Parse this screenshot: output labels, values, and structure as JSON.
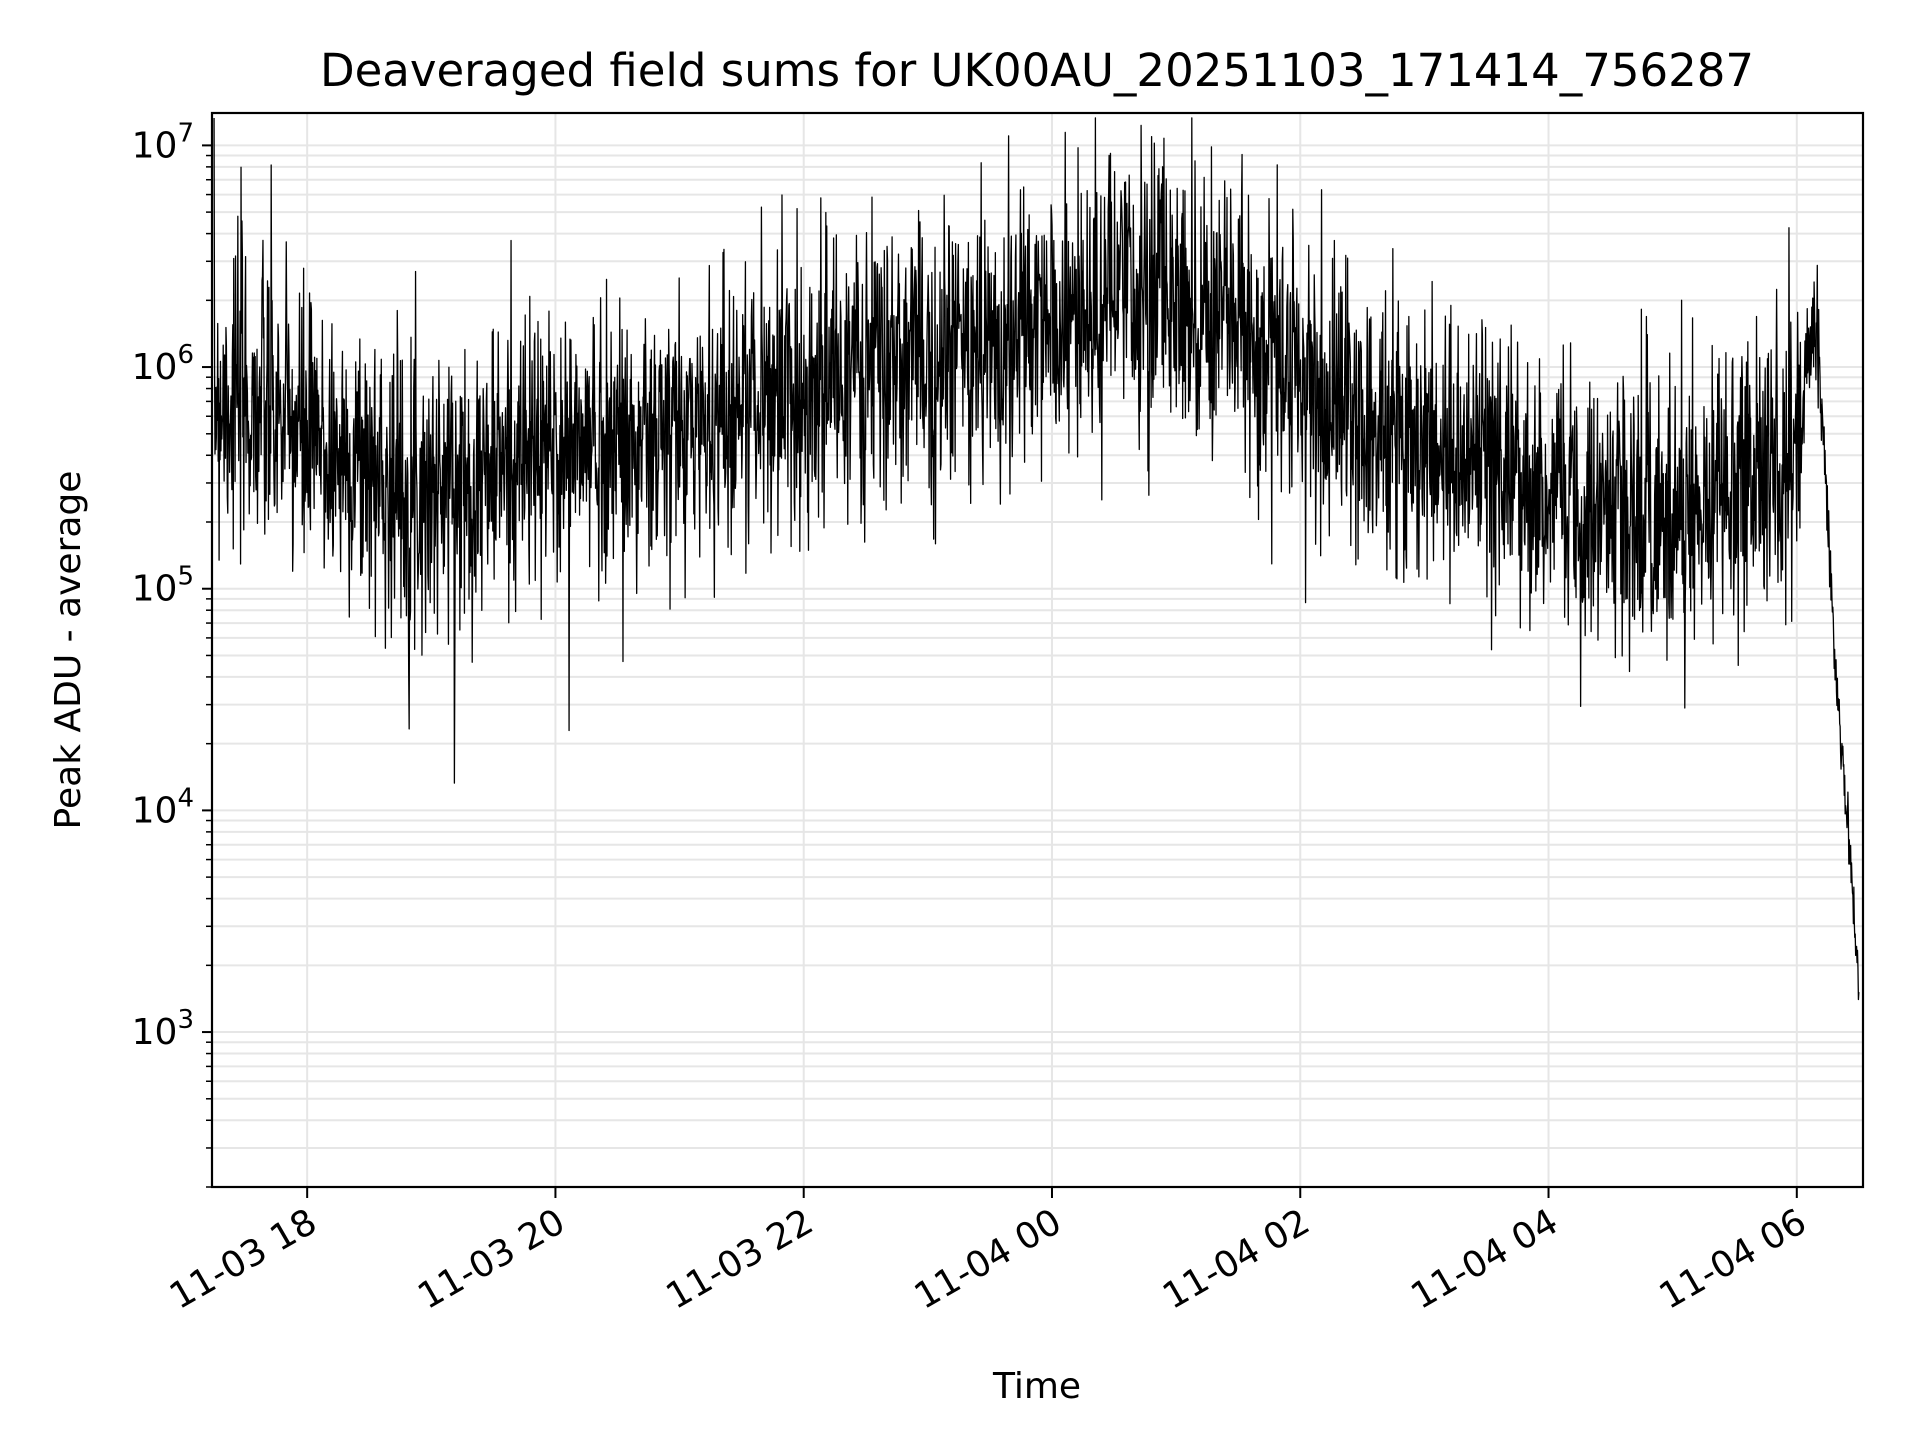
{
  "chart_data": {
    "type": "line",
    "title": "Deaveraged field sums for UK00AU_20251103_171414_756287",
    "xlabel": "Time",
    "ylabel": "Peak ADU - average",
    "yscale": "log",
    "ylim": [
      200,
      14000000
    ],
    "xlim": [
      "2025-11-03 17:14",
      "2025-11-04 06:32"
    ],
    "grid": true,
    "line_color": "#000000",
    "grid_color": "#e6e6e6",
    "x_ticks": [
      {
        "t": "2025-11-03 18:00",
        "label": "11-03 18"
      },
      {
        "t": "2025-11-03 20:00",
        "label": "11-03 20"
      },
      {
        "t": "2025-11-03 22:00",
        "label": "11-03 22"
      },
      {
        "t": "2025-11-04 00:00",
        "label": "11-04 00"
      },
      {
        "t": "2025-11-04 02:00",
        "label": "11-04 02"
      },
      {
        "t": "2025-11-04 04:00",
        "label": "11-04 04"
      },
      {
        "t": "2025-11-04 06:00",
        "label": "11-04 06"
      }
    ],
    "y_ticks": [
      {
        "value": 1000,
        "base": "10",
        "exp": "3"
      },
      {
        "value": 10000,
        "base": "10",
        "exp": "4"
      },
      {
        "value": 100000,
        "base": "10",
        "exp": "5"
      },
      {
        "value": 1000000,
        "base": "10",
        "exp": "6"
      },
      {
        "value": 10000000,
        "base": "10",
        "exp": "7"
      }
    ],
    "series": [
      {
        "x": [
          "2025-11-03 17:15",
          "2025-11-03 17:30",
          "2025-11-03 17:45",
          "2025-11-03 18:00",
          "2025-11-03 18:15",
          "2025-11-03 18:30",
          "2025-11-03 18:45",
          "2025-11-03 19:00",
          "2025-11-03 19:15",
          "2025-11-03 19:30",
          "2025-11-03 19:45",
          "2025-11-03 20:00",
          "2025-11-03 20:15",
          "2025-11-03 20:30",
          "2025-11-03 20:45",
          "2025-11-03 21:00",
          "2025-11-03 21:15",
          "2025-11-03 21:30",
          "2025-11-03 21:45",
          "2025-11-03 22:00",
          "2025-11-03 22:15",
          "2025-11-03 22:30",
          "2025-11-03 22:45",
          "2025-11-03 23:00",
          "2025-11-03 23:15",
          "2025-11-03 23:30",
          "2025-11-03 23:45",
          "2025-11-04 00:00",
          "2025-11-04 00:15",
          "2025-11-04 00:30",
          "2025-11-04 00:45",
          "2025-11-04 01:00",
          "2025-11-04 01:15",
          "2025-11-04 01:30",
          "2025-11-04 01:45",
          "2025-11-04 02:00",
          "2025-11-04 02:15",
          "2025-11-04 02:30",
          "2025-11-04 02:45",
          "2025-11-04 03:00",
          "2025-11-04 03:15",
          "2025-11-04 03:30",
          "2025-11-04 03:45",
          "2025-11-04 04:00",
          "2025-11-04 04:15",
          "2025-11-04 04:30",
          "2025-11-04 04:45",
          "2025-11-04 05:00",
          "2025-11-04 05:15",
          "2025-11-04 05:30",
          "2025-11-04 05:45",
          "2025-11-04 06:00",
          "2025-11-04 06:05",
          "2025-11-04 06:10",
          "2025-11-04 06:15",
          "2025-11-04 06:20",
          "2025-11-04 06:25",
          "2025-11-04 06:30"
        ],
        "y": [
          800000,
          700000,
          600000,
          450000,
          400000,
          350000,
          300000,
          280000,
          300000,
          350000,
          400000,
          420000,
          450000,
          480000,
          430000,
          500000,
          600000,
          700000,
          750000,
          800000,
          900000,
          950000,
          1000000,
          1100000,
          1200000,
          1300000,
          1400000,
          1500000,
          1700000,
          2000000,
          2200000,
          2200000,
          1900000,
          1500000,
          1100000,
          900000,
          700000,
          600000,
          500000,
          450000,
          400000,
          350000,
          300000,
          280000,
          260000,
          250000,
          240000,
          230000,
          260000,
          300000,
          330000,
          400000,
          1200000,
          1500000,
          200000,
          30000,
          8000,
          1500
        ],
        "spread": [
          0.9,
          0.85,
          0.8,
          0.8,
          0.75,
          0.75,
          0.75,
          0.75,
          0.75,
          0.75,
          0.75,
          0.75,
          0.75,
          0.75,
          0.75,
          0.75,
          0.75,
          0.75,
          0.75,
          0.75,
          0.75,
          0.75,
          0.75,
          0.75,
          0.75,
          0.75,
          0.75,
          0.75,
          0.75,
          0.75,
          0.75,
          0.75,
          0.75,
          0.75,
          0.75,
          0.75,
          0.75,
          0.75,
          0.75,
          0.75,
          0.75,
          0.75,
          0.75,
          0.75,
          0.75,
          0.75,
          0.75,
          0.75,
          0.75,
          0.75,
          0.75,
          0.75,
          0.4,
          0.3,
          0.2,
          0.15,
          0.15,
          0.1
        ]
      }
    ]
  }
}
